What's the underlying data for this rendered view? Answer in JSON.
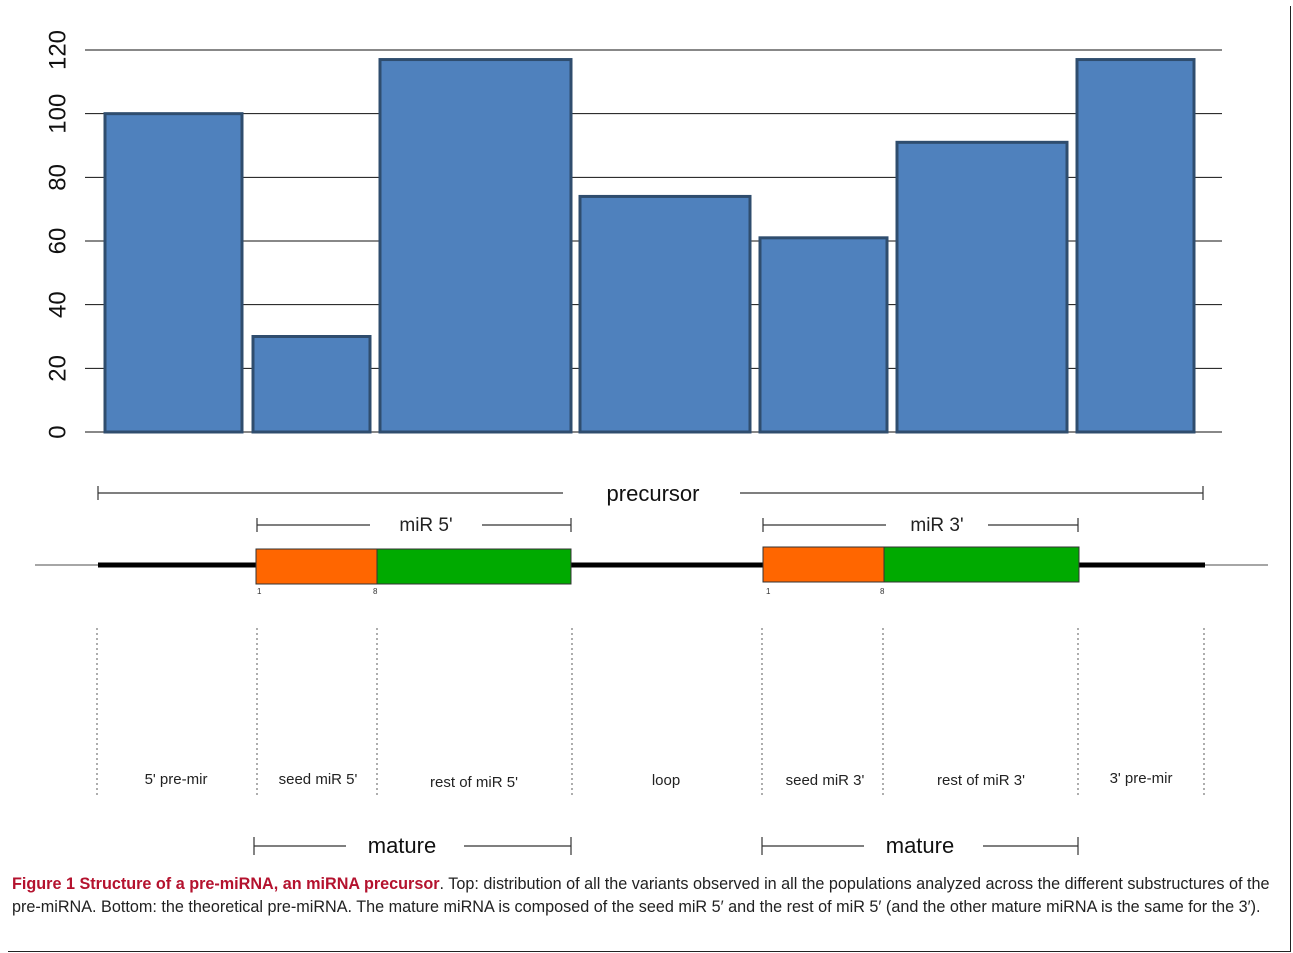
{
  "chart_data": {
    "type": "bar",
    "categories": [
      "5' pre-mir",
      "seed miR 5'",
      "rest of miR 5'",
      "loop",
      "seed miR 3'",
      "rest of miR 3'",
      "3' pre-mir"
    ],
    "values": [
      100,
      30,
      117,
      74,
      61,
      91,
      117
    ],
    "ylim": [
      0,
      120
    ],
    "yticks": [
      "0",
      "20",
      "40",
      "60",
      "80",
      "100",
      "120"
    ],
    "grid": true,
    "bar_color": "#4f81bd",
    "bar_edge_color": "#2f4d6e"
  },
  "diagram": {
    "precursor_label": "precursor",
    "mir5_label": "miR 5'",
    "mir3_label": "miR 3'",
    "mature_label": "mature",
    "seed_start_label": "1",
    "seed_end_label": "8",
    "seed_color": "#ff6600",
    "rest_color": "#00aa00"
  },
  "caption": {
    "bold": "Figure 1 Structure of a pre-miRNA, an miRNA precursor",
    "text": ". Top: distribution of all the variants observed in all the populations analyzed across the different substructures of the pre-miRNA. Bottom: the theoretical pre-miRNA. The mature miRNA is composed of the seed miR 5′ and the rest of miR 5′ (and the other mature miRNA is the same for the 3′)."
  }
}
